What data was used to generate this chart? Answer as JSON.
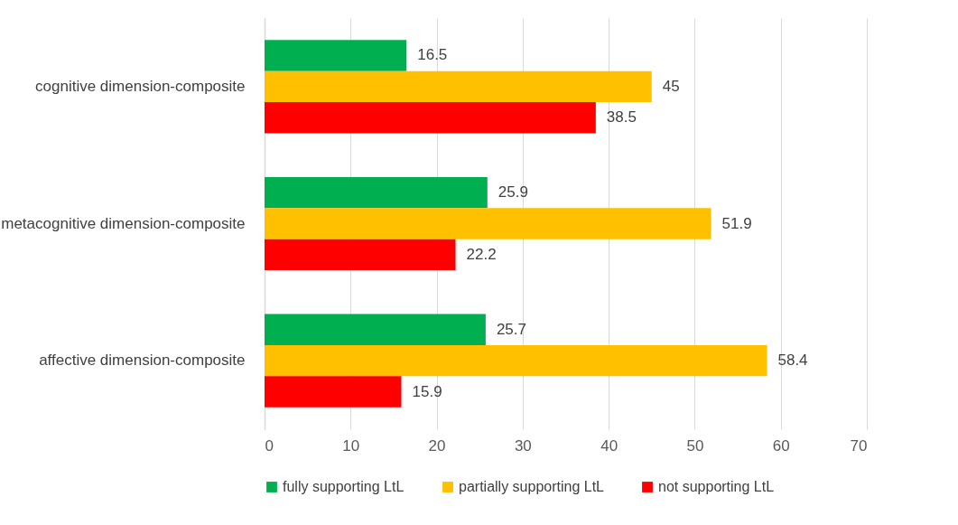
{
  "chart_data": {
    "type": "bar",
    "orientation": "horizontal",
    "categories": [
      "cognitive dimension-composite",
      "metacognitive dimension-composite",
      "affective dimension-composite"
    ],
    "series": [
      {
        "name": "fully supporting LtL",
        "color": "#00b050",
        "values": [
          16.5,
          25.9,
          25.7
        ]
      },
      {
        "name": "partially supporting LtL",
        "color": "#ffc000",
        "values": [
          45,
          51.9,
          58.4
        ]
      },
      {
        "name": "not supporting LtL",
        "color": "#ff0000",
        "values": [
          38.5,
          22.2,
          15.9
        ]
      }
    ],
    "xlim": [
      0,
      70
    ],
    "xticks": [
      0,
      10,
      20,
      30,
      40,
      50,
      60,
      70
    ],
    "grid": "x",
    "legend": "bottom",
    "data_labels": true
  }
}
